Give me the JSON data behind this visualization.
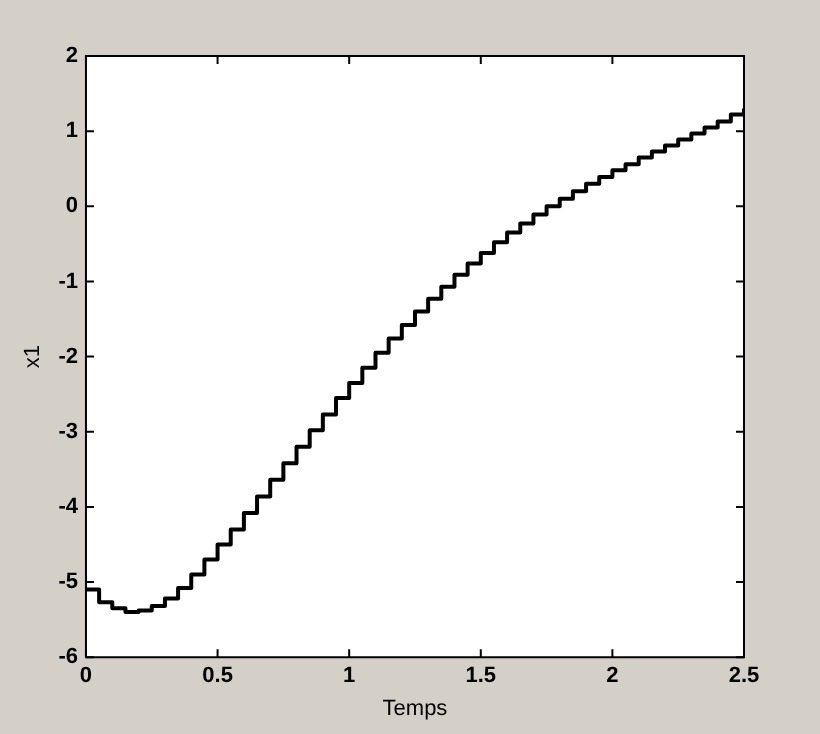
{
  "chart_data": {
    "type": "step",
    "xlabel": "Temps",
    "ylabel": "x1",
    "x": [
      0,
      0.05,
      0.1,
      0.15,
      0.2,
      0.25,
      0.3,
      0.35,
      0.4,
      0.45,
      0.5,
      0.55,
      0.6,
      0.65,
      0.7,
      0.75,
      0.8,
      0.85,
      0.9,
      0.95,
      1,
      1.05,
      1.1,
      1.15,
      1.2,
      1.25,
      1.3,
      1.35,
      1.4,
      1.45,
      1.5,
      1.55,
      1.6,
      1.65,
      1.7,
      1.75,
      1.8,
      1.85,
      1.9,
      1.95,
      2,
      2.05,
      2.1,
      2.15,
      2.2,
      2.25,
      2.3,
      2.35,
      2.4,
      2.45,
      2.5
    ],
    "series": [
      {
        "color": "#000000",
        "values": [
          -5.1,
          -5.27,
          -5.35,
          -5.4,
          -5.38,
          -5.32,
          -5.22,
          -5.08,
          -4.9,
          -4.7,
          -4.5,
          -4.3,
          -4.08,
          -3.86,
          -3.64,
          -3.42,
          -3.2,
          -2.98,
          -2.77,
          -2.55,
          -2.35,
          -2.15,
          -1.95,
          -1.76,
          -1.58,
          -1.4,
          -1.23,
          -1.07,
          -0.91,
          -0.76,
          -0.62,
          -0.48,
          -0.35,
          -0.23,
          -0.11,
          0,
          0.1,
          0.2,
          0.3,
          0.39,
          0.48,
          0.56,
          0.65,
          0.73,
          0.81,
          0.89,
          0.97,
          1.05,
          1.13,
          1.22,
          1.3
        ]
      }
    ],
    "xlim": [
      0,
      2.5
    ],
    "xticks": [
      0,
      0.5,
      1,
      1.5,
      2,
      2.5
    ],
    "ylim": [
      -6,
      2
    ],
    "yticks": [
      -6,
      -5,
      -4,
      -3,
      -2,
      -1,
      0,
      1,
      2
    ],
    "grid": false,
    "legend": false
  }
}
